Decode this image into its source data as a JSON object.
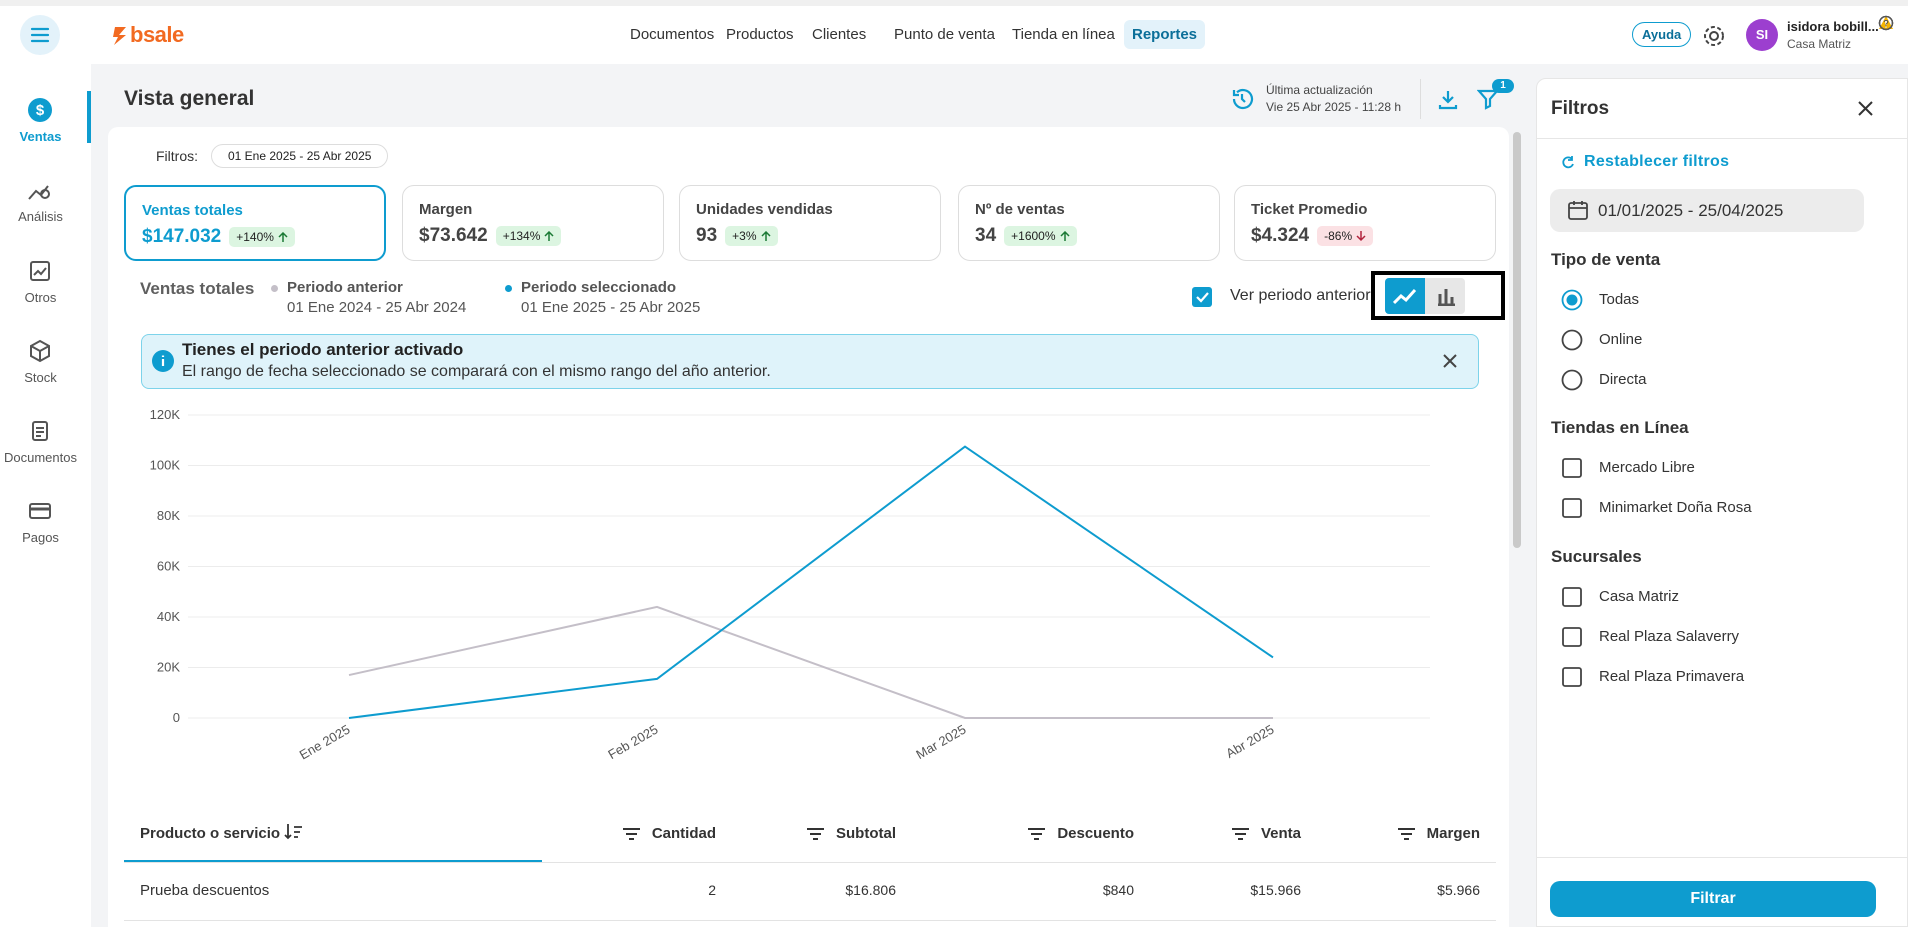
{
  "topbar": {
    "logo": "bsale",
    "nav": [
      "Documentos",
      "Productos",
      "Clientes",
      "Punto de venta",
      "Tienda en línea",
      "Reportes"
    ],
    "active_nav": 5,
    "help": "Ayuda",
    "user": {
      "initials": "SI",
      "name": "isidora bobill...",
      "store": "Casa Matriz"
    }
  },
  "sidebar": {
    "items": [
      "Ventas",
      "Análisis",
      "Otros",
      "Stock",
      "Documentos",
      "Pagos"
    ],
    "active": 0
  },
  "header": {
    "title": "Vista general",
    "update_label": "Última actualización",
    "update_time": "Vie 25 Abr 2025 - 11:28 h",
    "filter_count": "1"
  },
  "filters_bar": {
    "label": "Filtros:",
    "range": "01 Ene 2025 - 25 Abr 2025"
  },
  "kpis": [
    {
      "label": "Ventas totales",
      "value": "$147.032",
      "change": "+140%",
      "direction": "up",
      "icon": "help"
    },
    {
      "label": "Margen",
      "value": "$73.642",
      "change": "+134%",
      "direction": "up",
      "icon": "warning"
    },
    {
      "label": "Unidades vendidas",
      "value": "93",
      "change": "+3%",
      "direction": "up",
      "icon": "help"
    },
    {
      "label": "Nº de ventas",
      "value": "34",
      "change": "+1600%",
      "direction": "up",
      "icon": "help"
    },
    {
      "label": "Ticket Promedio",
      "value": "$4.324",
      "change": "-86%",
      "direction": "down",
      "icon": "help"
    }
  ],
  "compare": {
    "label": "Ver periodo anterior",
    "checked": true
  },
  "banner": {
    "title": "Tienes el periodo anterior activado",
    "text": "El rango de fecha seleccionado se comparará con el mismo rango del año anterior."
  },
  "chart_data": {
    "type": "line",
    "title": "Ventas totales",
    "categories": [
      "Ene 2025",
      "Feb 2025",
      "Mar 2025",
      "Abr 2025"
    ],
    "series": [
      {
        "name": "Periodo anterior",
        "period": "01 Ene 2024 - 25 Abr 2024",
        "color": "#c4bfc8",
        "values": [
          17000,
          44000,
          0,
          0
        ]
      },
      {
        "name": "Periodo seleccionado",
        "period": "01 Ene 2025 - 25 Abr 2025",
        "color": "#0e9ccf",
        "values": [
          0,
          15500,
          107500,
          24000
        ]
      }
    ],
    "ylim": [
      0,
      120000
    ],
    "yticks": [
      0,
      {
        "value": 20000,
        "label": "20K"
      },
      {
        "value": 40000,
        "label": "40K"
      },
      {
        "value": 60000,
        "label": "60K"
      },
      {
        "value": 80000,
        "label": "80K"
      },
      {
        "value": 100000,
        "label": "100K"
      },
      {
        "value": 120000,
        "label": "120K"
      }
    ],
    "grid": true
  },
  "table": {
    "columns": [
      "Producto o servicio",
      "Cantidad",
      "Subtotal",
      "Descuento",
      "Venta",
      "Margen"
    ],
    "rows": [
      [
        "Prueba descuentos",
        "2",
        "$16.806",
        "$840",
        "$15.966",
        "$5.966"
      ]
    ]
  },
  "filter_panel": {
    "title": "Filtros",
    "reset": "Restablecer filtros",
    "date": "01/01/2025 - 25/04/2025",
    "groups": [
      {
        "title": "Tipo de venta",
        "kind": "radio",
        "options": [
          "Todas",
          "Online",
          "Directa"
        ],
        "selected": 0
      },
      {
        "title": "Tiendas en Línea",
        "kind": "checkbox",
        "options": [
          "Mercado Libre",
          "Minimarket Doña Rosa"
        ]
      },
      {
        "title": "Sucursales",
        "kind": "checkbox",
        "options": [
          "Casa Matriz",
          "Real Plaza Salaverry",
          "Real Plaza Primavera"
        ]
      }
    ],
    "button": "Filtrar"
  }
}
